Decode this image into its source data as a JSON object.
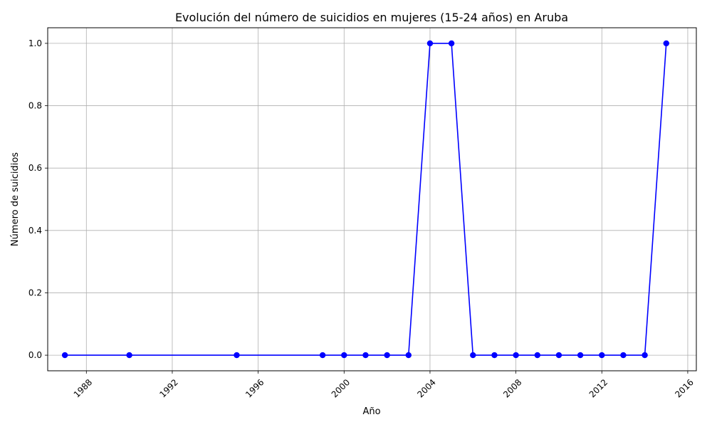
{
  "chart_data": {
    "type": "line",
    "title": "Evolución del número de suicidios en mujeres (15-24 años) en Aruba",
    "xlabel": "Año",
    "ylabel": "Número de suicidios",
    "xlim": [
      1986.2,
      2016.4
    ],
    "ylim": [
      -0.05,
      1.05
    ],
    "x_ticks": [
      1988,
      1992,
      1996,
      2000,
      2004,
      2008,
      2012,
      2016
    ],
    "x_tick_labels": [
      "1988",
      "1992",
      "1996",
      "2000",
      "2004",
      "2008",
      "2012",
      "2016"
    ],
    "y_ticks": [
      0.0,
      0.2,
      0.4,
      0.6,
      0.8,
      1.0
    ],
    "y_tick_labels": [
      "0.0",
      "0.2",
      "0.4",
      "0.6",
      "0.8",
      "1.0"
    ],
    "grid": true,
    "series": [
      {
        "color": "#0000ff",
        "marker": "circle",
        "x": [
          1987,
          1990,
          1995,
          1999,
          2000,
          2001,
          2002,
          2003,
          2004,
          2005,
          2006,
          2007,
          2008,
          2009,
          2010,
          2011,
          2012,
          2013,
          2014,
          2015
        ],
        "y": [
          0,
          0,
          0,
          0,
          0,
          0,
          0,
          0,
          1,
          1,
          0,
          0,
          0,
          0,
          0,
          0,
          0,
          0,
          0,
          1
        ]
      }
    ]
  }
}
